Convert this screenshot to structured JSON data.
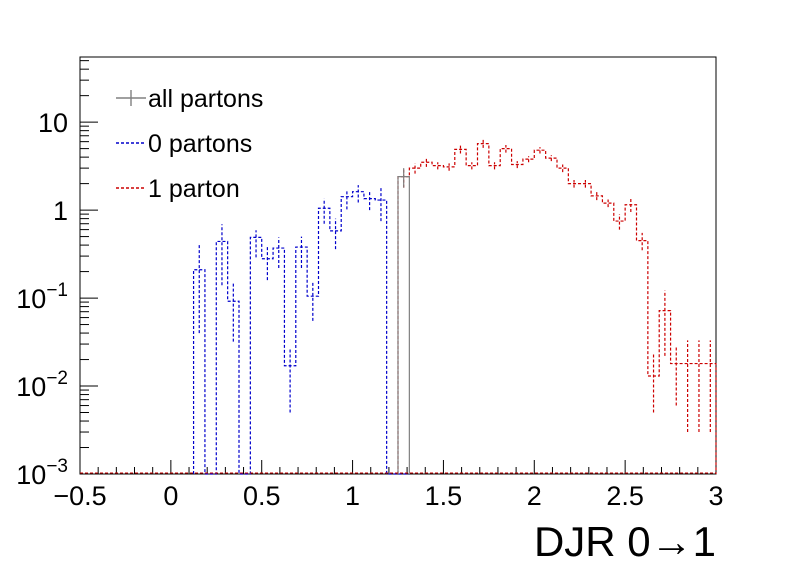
{
  "chart_data": {
    "type": "histogram-step",
    "xlabel": "DJR 0→1",
    "ylabel": "",
    "xlim": [
      -0.5,
      3.0
    ],
    "ylim": [
      0.001,
      55
    ],
    "yscale": "log",
    "bin_width": 0.0625,
    "x_ticks": [
      "−0.5",
      "0",
      "0.5",
      "1",
      "1.5",
      "2",
      "2.5",
      "3"
    ],
    "y_ticks": [
      {
        "value": 0.001,
        "base": "10",
        "exp": "−3"
      },
      {
        "value": 0.01,
        "base": "10",
        "exp": "−2"
      },
      {
        "value": 0.1,
        "base": "10",
        "exp": "−1"
      },
      {
        "value": 1,
        "base": "1",
        "exp": ""
      },
      {
        "value": 10,
        "base": "10",
        "exp": ""
      }
    ],
    "legend": {
      "placement": "top-left",
      "entries": [
        {
          "label": "all partons",
          "color": "#808080",
          "style": "solid"
        },
        {
          "label": "0 partons",
          "color": "#0000cc",
          "style": "dotted"
        },
        {
          "label": "1 parton",
          "color": "#cc0000",
          "style": "dotted"
        }
      ]
    },
    "series": [
      {
        "name": "0 partons",
        "color": "#0000cc",
        "bin_edges": [
          0.125,
          0.1875,
          0.25,
          0.3125,
          0.375,
          0.4375,
          0.5,
          0.5625,
          0.625,
          0.6875,
          0.75,
          0.8125,
          0.875,
          0.9375,
          1.0,
          1.0625,
          1.125,
          1.1875,
          1.25,
          1.3125
        ],
        "values": [
          0.21,
          0.001,
          0.44,
          0.092,
          0.001,
          0.49,
          0.28,
          0.37,
          0.017,
          0.38,
          0.105,
          1.05,
          0.58,
          1.42,
          1.62,
          1.35,
          1.3,
          0.001,
          0.001
        ],
        "errors_low": [
          0.17,
          0,
          0.3,
          0.06,
          0,
          0.2,
          0.12,
          0.15,
          0.012,
          0.16,
          0.05,
          0.35,
          0.22,
          0.4,
          0.4,
          0.35,
          0.55,
          0,
          0
        ],
        "errors_high": [
          0.2,
          0,
          0.25,
          0.06,
          0,
          0.1,
          0.12,
          0.12,
          0.01,
          0.12,
          0.05,
          0.3,
          0.22,
          0.3,
          0.3,
          0.25,
          0.5,
          0,
          0
        ]
      },
      {
        "name": "1 parton",
        "color": "#cc0000",
        "bin_edges": [
          1.25,
          1.3125,
          1.375,
          1.4375,
          1.5,
          1.5625,
          1.625,
          1.6875,
          1.75,
          1.8125,
          1.875,
          1.9375,
          2.0,
          2.0625,
          2.125,
          2.1875,
          2.25,
          2.3125,
          2.375,
          2.4375,
          2.5,
          2.5625,
          2.625,
          2.6875,
          2.75,
          2.8125,
          2.875,
          2.9375,
          3.0
        ],
        "values": [
          2.4,
          3.0,
          3.5,
          3.2,
          3.1,
          4.9,
          3.2,
          5.7,
          3.2,
          5.0,
          3.3,
          3.8,
          4.8,
          3.9,
          3.0,
          2.0,
          2.0,
          1.45,
          1.2,
          0.75,
          1.15,
          0.45,
          0.013,
          0.072,
          0.018,
          0.018,
          0.018,
          0.018
        ],
        "errors_low": [
          0.6,
          0.4,
          0.4,
          0.3,
          0.3,
          0.5,
          0.3,
          0.6,
          0.3,
          0.5,
          0.3,
          0.3,
          0.4,
          0.3,
          0.3,
          0.2,
          0.2,
          0.15,
          0.12,
          0.15,
          0.2,
          0.1,
          0.008,
          0.05,
          0.012,
          0.015,
          0.015,
          0.015
        ],
        "errors_high": [
          0.6,
          0.4,
          0.4,
          0.3,
          0.3,
          0.5,
          0.3,
          0.6,
          0.3,
          0.5,
          0.3,
          0.3,
          0.4,
          0.3,
          0.3,
          0.2,
          0.2,
          0.15,
          0.12,
          0.15,
          0.2,
          0.1,
          0.01,
          0.05,
          0.01,
          0.015,
          0.015,
          0.015
        ]
      },
      {
        "name": "all partons",
        "color": "#808080",
        "bin_edges": [
          1.25,
          1.3125
        ],
        "values": [
          2.4
        ],
        "errors_low": [
          0.6
        ],
        "errors_high": [
          0.6
        ]
      }
    ]
  }
}
